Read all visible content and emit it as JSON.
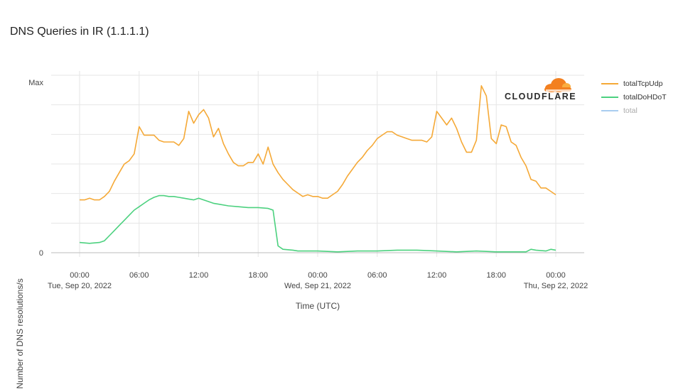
{
  "title": "DNS Queries in IR (1.1.1.1)",
  "brand": "CLOUDFLARE",
  "chart_data": {
    "type": "line",
    "title": "DNS Queries in IR (1.1.1.1)",
    "xlabel": "Time (UTC)",
    "ylabel": "Number of DNS resolutions/s",
    "y_tick_labels": [
      "0",
      "Max"
    ],
    "y_range": [
      0,
      1
    ],
    "x_range_hours": [
      0,
      48
    ],
    "x_ticks": [
      {
        "hour": 0,
        "time": "00:00",
        "date": "Tue, Sep 20, 2022"
      },
      {
        "hour": 6,
        "time": "06:00",
        "date": ""
      },
      {
        "hour": 12,
        "time": "12:00",
        "date": ""
      },
      {
        "hour": 18,
        "time": "18:00",
        "date": ""
      },
      {
        "hour": 24,
        "time": "00:00",
        "date": "Wed, Sep 21, 2022"
      },
      {
        "hour": 30,
        "time": "06:00",
        "date": ""
      },
      {
        "hour": 36,
        "time": "12:00",
        "date": ""
      },
      {
        "hour": 42,
        "time": "18:00",
        "date": ""
      },
      {
        "hour": 48,
        "time": "00:00",
        "date": "Thu, Sep 22, 2022"
      }
    ],
    "grid": true,
    "legend_position": "right",
    "series": [
      {
        "name": "totalTcpUdp",
        "color": "#f5a937",
        "visible": true,
        "points": [
          [
            0,
            0.31
          ],
          [
            0.5,
            0.31
          ],
          [
            1,
            0.32
          ],
          [
            1.5,
            0.31
          ],
          [
            2,
            0.31
          ],
          [
            2.5,
            0.33
          ],
          [
            3,
            0.36
          ],
          [
            3.5,
            0.42
          ],
          [
            4,
            0.47
          ],
          [
            4.5,
            0.52
          ],
          [
            5,
            0.54
          ],
          [
            5.5,
            0.58
          ],
          [
            6,
            0.74
          ],
          [
            6.5,
            0.69
          ],
          [
            7,
            0.69
          ],
          [
            7.5,
            0.69
          ],
          [
            8,
            0.66
          ],
          [
            8.5,
            0.65
          ],
          [
            9,
            0.65
          ],
          [
            9.5,
            0.65
          ],
          [
            10,
            0.63
          ],
          [
            10.5,
            0.67
          ],
          [
            11,
            0.83
          ],
          [
            11.5,
            0.76
          ],
          [
            12,
            0.81
          ],
          [
            12.5,
            0.84
          ],
          [
            13,
            0.79
          ],
          [
            13.5,
            0.68
          ],
          [
            14,
            0.73
          ],
          [
            14.5,
            0.64
          ],
          [
            15,
            0.58
          ],
          [
            15.5,
            0.53
          ],
          [
            16,
            0.51
          ],
          [
            16.5,
            0.51
          ],
          [
            17,
            0.53
          ],
          [
            17.5,
            0.53
          ],
          [
            18,
            0.58
          ],
          [
            18.5,
            0.52
          ],
          [
            19,
            0.62
          ],
          [
            19.5,
            0.52
          ],
          [
            20,
            0.47
          ],
          [
            20.5,
            0.43
          ],
          [
            21,
            0.4
          ],
          [
            21.5,
            0.37
          ],
          [
            22,
            0.35
          ],
          [
            22.5,
            0.33
          ],
          [
            23,
            0.34
          ],
          [
            23.5,
            0.33
          ],
          [
            24,
            0.33
          ],
          [
            24.5,
            0.32
          ],
          [
            25,
            0.32
          ],
          [
            25.5,
            0.34
          ],
          [
            26,
            0.36
          ],
          [
            26.5,
            0.4
          ],
          [
            27,
            0.45
          ],
          [
            27.5,
            0.49
          ],
          [
            28,
            0.53
          ],
          [
            28.5,
            0.56
          ],
          [
            29,
            0.6
          ],
          [
            29.5,
            0.63
          ],
          [
            30,
            0.67
          ],
          [
            30.5,
            0.69
          ],
          [
            31,
            0.71
          ],
          [
            31.5,
            0.71
          ],
          [
            32,
            0.69
          ],
          [
            32.5,
            0.68
          ],
          [
            33,
            0.67
          ],
          [
            33.5,
            0.66
          ],
          [
            34,
            0.66
          ],
          [
            34.5,
            0.66
          ],
          [
            35,
            0.65
          ],
          [
            35.5,
            0.68
          ],
          [
            36,
            0.83
          ],
          [
            36.5,
            0.79
          ],
          [
            37,
            0.75
          ],
          [
            37.5,
            0.79
          ],
          [
            38,
            0.73
          ],
          [
            38.5,
            0.65
          ],
          [
            39,
            0.59
          ],
          [
            39.5,
            0.59
          ],
          [
            40,
            0.66
          ],
          [
            40.5,
            0.98
          ],
          [
            41,
            0.92
          ],
          [
            41.5,
            0.67
          ],
          [
            42,
            0.64
          ],
          [
            42.5,
            0.75
          ],
          [
            43,
            0.74
          ],
          [
            43.5,
            0.65
          ],
          [
            44,
            0.63
          ],
          [
            44.5,
            0.56
          ],
          [
            45,
            0.51
          ],
          [
            45.5,
            0.43
          ],
          [
            46,
            0.42
          ],
          [
            46.5,
            0.38
          ],
          [
            47,
            0.38
          ],
          [
            47.5,
            0.36
          ],
          [
            48,
            0.34
          ]
        ]
      },
      {
        "name": "totalDoHDoT",
        "color": "#4cd17f",
        "visible": true,
        "points": [
          [
            0,
            0.06
          ],
          [
            1,
            0.055
          ],
          [
            2,
            0.06
          ],
          [
            2.5,
            0.07
          ],
          [
            3,
            0.1
          ],
          [
            3.5,
            0.13
          ],
          [
            4,
            0.16
          ],
          [
            4.5,
            0.19
          ],
          [
            5,
            0.22
          ],
          [
            5.5,
            0.25
          ],
          [
            6,
            0.27
          ],
          [
            6.5,
            0.29
          ],
          [
            7,
            0.31
          ],
          [
            7.5,
            0.325
          ],
          [
            8,
            0.335
          ],
          [
            8.5,
            0.335
          ],
          [
            9,
            0.33
          ],
          [
            9.5,
            0.33
          ],
          [
            10,
            0.325
          ],
          [
            10.5,
            0.32
          ],
          [
            11,
            0.315
          ],
          [
            11.5,
            0.31
          ],
          [
            12,
            0.32
          ],
          [
            12.5,
            0.31
          ],
          [
            13,
            0.3
          ],
          [
            13.5,
            0.29
          ],
          [
            14,
            0.285
          ],
          [
            15,
            0.275
          ],
          [
            16,
            0.27
          ],
          [
            17,
            0.265
          ],
          [
            18,
            0.265
          ],
          [
            19,
            0.26
          ],
          [
            19.5,
            0.25
          ],
          [
            20,
            0.04
          ],
          [
            20.5,
            0.02
          ],
          [
            21.5,
            0.015
          ],
          [
            22,
            0.01
          ],
          [
            24,
            0.01
          ],
          [
            26,
            0.005
          ],
          [
            28,
            0.01
          ],
          [
            30,
            0.01
          ],
          [
            32,
            0.015
          ],
          [
            34,
            0.015
          ],
          [
            36,
            0.01
          ],
          [
            38,
            0.005
          ],
          [
            40,
            0.01
          ],
          [
            42,
            0.005
          ],
          [
            44,
            0.005
          ],
          [
            45,
            0.005
          ],
          [
            45.5,
            0.02
          ],
          [
            46,
            0.015
          ],
          [
            47,
            0.01
          ],
          [
            47.5,
            0.02
          ],
          [
            48,
            0.015
          ]
        ]
      },
      {
        "name": "total",
        "color": "#a9cdf0",
        "visible": false,
        "points": []
      }
    ]
  }
}
